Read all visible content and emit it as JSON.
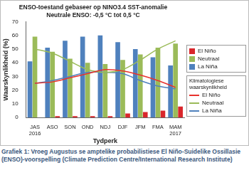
{
  "chart_data": {
    "type": "bar",
    "title": [
      "ENSO-toestand gebaseer op NINO3.4 SST-anomalie",
      "Neutrale ENSO: -0,5 °C tot 0,5 °C"
    ],
    "x_label": "Tydperk",
    "y_label": "Waarskynlikheid (%)",
    "categories": [
      "JAS 2016",
      "ASO",
      "SON",
      "OND",
      "NDJ",
      "DJF",
      "JFM",
      "FMA",
      "MAM 2017"
    ],
    "series": [
      {
        "name": "La Niña",
        "color": "#4f81bd",
        "values": [
          41,
          51,
          56,
          59,
          60,
          55,
          50,
          44,
          38
        ]
      },
      {
        "name": "Neutraal",
        "color": "#9bbb59",
        "values": [
          59,
          48,
          43,
          40,
          39,
          42,
          46,
          51,
          54
        ]
      },
      {
        "name": "El Niño",
        "color": "#d9262b",
        "values": [
          0,
          1,
          1,
          1,
          1,
          3,
          4,
          5,
          8
        ]
      },
      {
        "name": "El Niño",
        "type": "line",
        "color": "#e8322d",
        "values": [
          25,
          26,
          29,
          32,
          35,
          34,
          31,
          27,
          22
        ]
      },
      {
        "name": "Neutraal",
        "type": "line",
        "color": "#9bbb59",
        "values": [
          50,
          47,
          41,
          35,
          33,
          35,
          42,
          50,
          56
        ]
      },
      {
        "name": "La Niña",
        "type": "line",
        "color": "#4f81bd",
        "values": [
          25,
          27,
          30,
          33,
          33,
          32,
          27,
          23,
          21
        ]
      }
    ],
    "legend_title": "Klimatologiese waarskynlikheid",
    "ylim": [
      0,
      70
    ],
    "yticks": [
      0,
      10,
      20,
      30,
      40,
      50,
      60,
      70
    ],
    "grid": false,
    "legend": "right",
    "caption": "Grafiek 1: Vroeg Augustus se amptelike probabilistiese El Niño-Suidelike Ossillasie (ENSO)-voorspelling (Climate Prediction Centre/International Research Institute)"
  }
}
